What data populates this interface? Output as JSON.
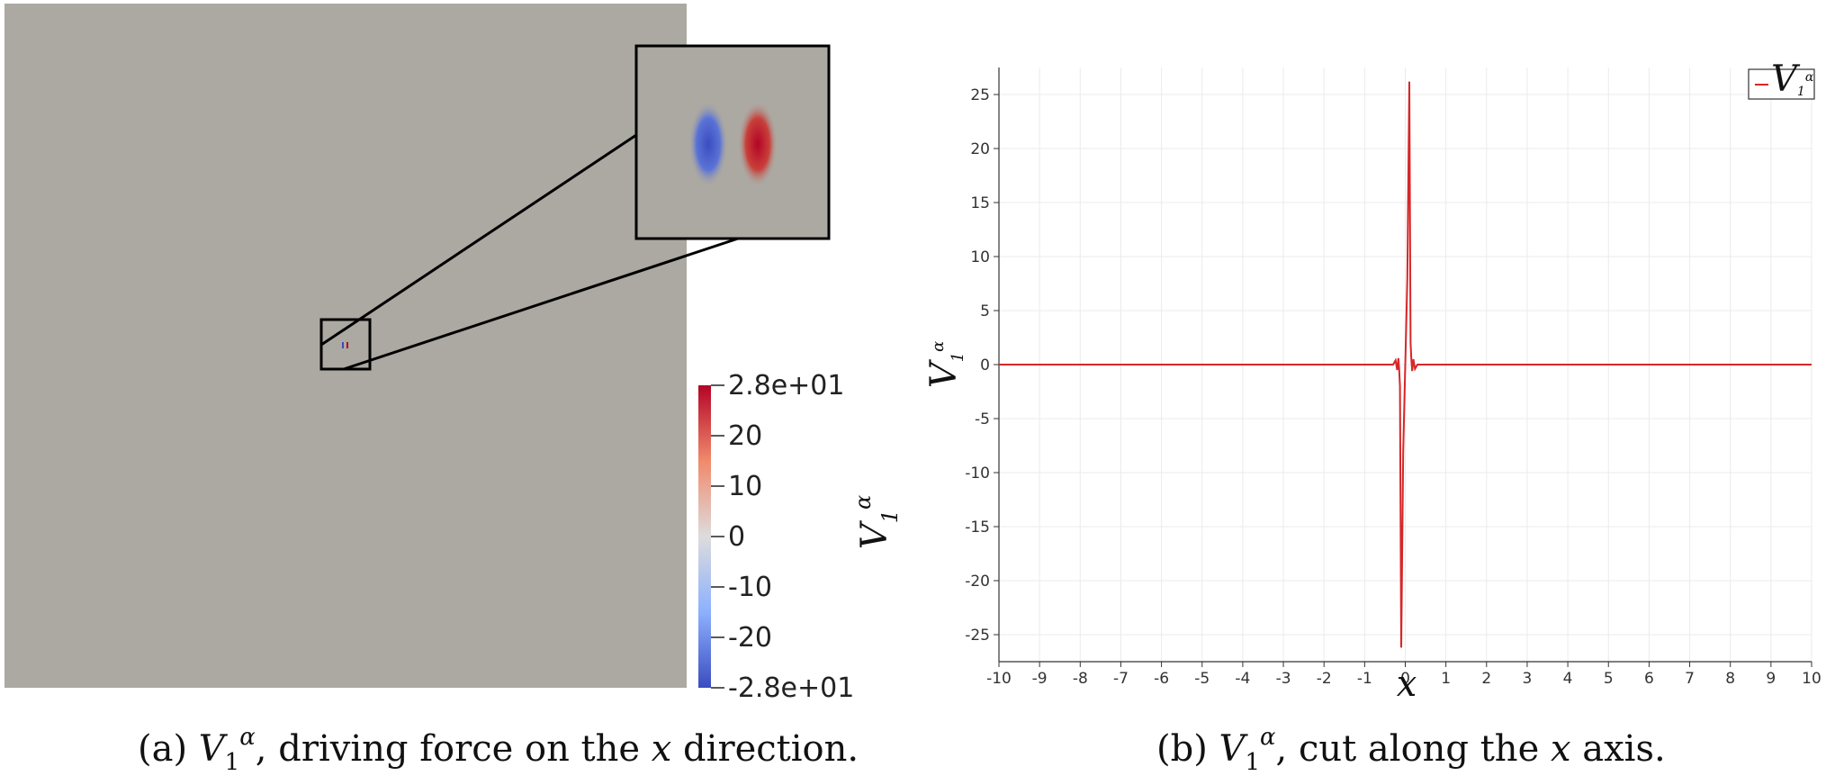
{
  "panel_a": {
    "caption_prefix": "(a)",
    "caption_symbol": "V",
    "caption_subscript": "1",
    "caption_superscript": "α",
    "caption_rest": ", driving force on the ",
    "caption_var": "x",
    "caption_end": " direction.",
    "colorbar": {
      "label_symbol": "V",
      "label_subscript": "1",
      "label_superscript": "α",
      "tick_labels": [
        "2.8e+01",
        "20",
        "10",
        "0",
        "-10",
        "-20",
        "-2.8e+01"
      ],
      "colors": {
        "high": "#b40426",
        "mid": "#dddcdc",
        "low": "#3b4cc0"
      }
    },
    "colors": {
      "background": "#aca9a2",
      "inset_border": "#000000"
    }
  },
  "panel_b": {
    "caption_prefix": "(b)",
    "caption_symbol": "V",
    "caption_subscript": "1",
    "caption_superscript": "α",
    "caption_rest": ", cut along the ",
    "caption_var": "x",
    "caption_end": " axis.",
    "chart_data": {
      "type": "line",
      "x_label": "x",
      "y_label_symbol": "V",
      "y_label_subscript": "1",
      "y_label_superscript": "α",
      "xlim": [
        -10,
        10
      ],
      "ylim": [
        -27.5,
        27.5
      ],
      "x_ticks": [
        -10,
        -9,
        -8,
        -7,
        -6,
        -5,
        -4,
        -3,
        -2,
        -1,
        0,
        1,
        2,
        3,
        4,
        5,
        6,
        7,
        8,
        9,
        10
      ],
      "y_ticks": [
        25,
        20,
        15,
        10,
        5,
        0,
        -5,
        -10,
        -15,
        -20,
        -25
      ],
      "grid": true,
      "legend_placement": "top-right",
      "series": [
        {
          "name": "V1α",
          "legend_symbol": "V",
          "legend_subscript": "1",
          "legend_superscript": "α",
          "color": "#d62728",
          "x": [
            -10,
            -0.3,
            -0.24,
            -0.2,
            -0.17,
            -0.15,
            -0.13,
            -0.1,
            -0.05,
            0,
            0.05,
            0.1,
            0.13,
            0.15,
            0.17,
            0.2,
            0.24,
            0.3,
            10
          ],
          "y": [
            0,
            0,
            0.4,
            -0.5,
            0.6,
            -0.4,
            -2,
            -26.2,
            -8,
            0,
            8,
            26.2,
            2,
            0.4,
            -0.6,
            0.5,
            -0.4,
            0,
            0
          ]
        }
      ]
    }
  }
}
